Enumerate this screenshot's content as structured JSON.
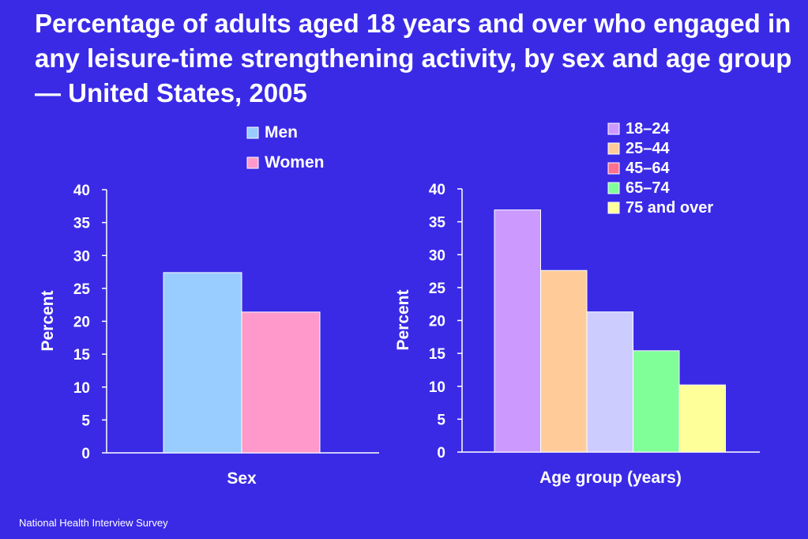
{
  "title": "Percentage of adults aged 18 years and over who engaged in any leisure-time strengthening activity, by sex and age group — United States, 2005",
  "source": "National Health Interview Survey",
  "colors": {
    "background": "#3a2ae6",
    "men": "#99ccff",
    "women": "#ff99cc",
    "age_18_24": "#cc99ff",
    "age_25_44": "#ffcc99",
    "age_45_64": "#ccccff",
    "age_65_74": "#80ff99",
    "age_75_over": "#ffff99",
    "legend_45_64_swatch": "#ff6f8f"
  },
  "chart_data": [
    {
      "type": "bar",
      "xlabel": "Sex",
      "ylabel": "Percent",
      "ylim": [
        0,
        40
      ],
      "yticks": [
        "0",
        "5",
        "10",
        "15",
        "20",
        "25",
        "30",
        "35",
        "40"
      ],
      "legend_position": "top",
      "categories": [
        "Men",
        "Women"
      ],
      "values": [
        27.4,
        21.4
      ],
      "colors": [
        "#99ccff",
        "#ff99cc"
      ]
    },
    {
      "type": "bar",
      "xlabel": "Age group (years)",
      "ylabel": "Percent",
      "ylim": [
        0,
        40
      ],
      "yticks": [
        "0",
        "5",
        "10",
        "15",
        "20",
        "25",
        "30",
        "35",
        "40"
      ],
      "legend_position": "top-right",
      "categories": [
        "18–24",
        "25–44",
        "45–64",
        "65–74",
        "75 and over"
      ],
      "values": [
        36.8,
        27.6,
        21.3,
        15.4,
        10.2
      ],
      "colors": [
        "#cc99ff",
        "#ffcc99",
        "#ccccff",
        "#80ff99",
        "#ffff99"
      ],
      "legend_colors": [
        "#cc99ff",
        "#ffcc99",
        "#ff6f8f",
        "#80ff99",
        "#ffff99"
      ]
    }
  ]
}
